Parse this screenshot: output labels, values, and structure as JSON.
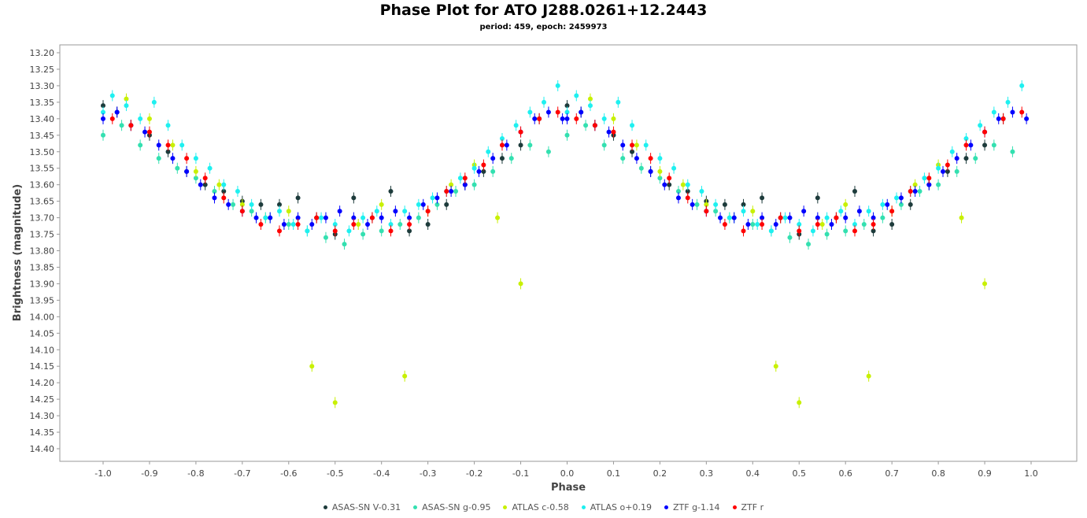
{
  "chart_data": {
    "type": "scatter",
    "title": "Phase Plot for ATO J288.0261+12.2443",
    "subtitle": "period: 459, epoch: 2459973",
    "xlabel": "Phase",
    "ylabel": "Brightness (magnitude)",
    "xlim": [
      -1.0,
      1.0
    ],
    "ylim": [
      13.2,
      14.4
    ],
    "y_inverted": true,
    "x_ticks": [
      "-1.0",
      "-0.9",
      "-0.8",
      "-0.7",
      "-0.6",
      "-0.5",
      "-0.4",
      "-0.3",
      "-0.2",
      "-0.1",
      "0.0",
      "0.1",
      "0.2",
      "0.3",
      "0.4",
      "0.5",
      "0.6",
      "0.7",
      "0.8",
      "0.9",
      "1.0"
    ],
    "y_ticks": [
      "13.20",
      "13.25",
      "13.30",
      "13.35",
      "13.40",
      "13.45",
      "13.50",
      "13.55",
      "13.60",
      "13.65",
      "13.70",
      "13.75",
      "13.80",
      "13.85",
      "13.90",
      "13.95",
      "14.00",
      "14.05",
      "14.10",
      "14.15",
      "14.20",
      "14.25",
      "14.30",
      "14.35",
      "14.40"
    ],
    "grid": false,
    "legend_position": "bottom",
    "series": [
      {
        "name": "ASAS-SN V-0.31",
        "color": "#1d3b3b",
        "x": [
          0.0,
          0.03,
          0.06,
          0.1,
          0.14,
          0.18,
          0.22,
          0.26,
          0.3,
          0.34,
          0.38,
          0.42,
          0.46,
          0.5,
          0.54,
          0.58,
          0.62,
          0.66,
          0.7,
          0.74,
          0.78,
          0.82,
          0.86,
          0.9,
          0.94
        ],
        "y": [
          13.36,
          13.38,
          13.42,
          13.45,
          13.5,
          13.56,
          13.6,
          13.62,
          13.65,
          13.66,
          13.66,
          13.64,
          13.7,
          13.75,
          13.64,
          13.7,
          13.62,
          13.74,
          13.72,
          13.66,
          13.6,
          13.56,
          13.52,
          13.48,
          13.4
        ]
      },
      {
        "name": "ASAS-SN g-0.95",
        "color": "#33e0b0",
        "x": [
          0.0,
          0.04,
          0.08,
          0.12,
          0.16,
          0.2,
          0.24,
          0.28,
          0.32,
          0.36,
          0.4,
          0.44,
          0.48,
          0.52,
          0.56,
          0.6,
          0.64,
          0.68,
          0.72,
          0.76,
          0.8,
          0.84,
          0.88,
          0.92,
          0.96
        ],
        "y": [
          13.45,
          13.42,
          13.48,
          13.52,
          13.55,
          13.58,
          13.62,
          13.66,
          13.68,
          13.7,
          13.72,
          13.74,
          13.76,
          13.78,
          13.75,
          13.74,
          13.72,
          13.7,
          13.66,
          13.62,
          13.6,
          13.56,
          13.52,
          13.48,
          13.5
        ]
      },
      {
        "name": "ATLAS c-0.58",
        "color": "#c8f000",
        "x": [
          0.05,
          0.1,
          0.15,
          0.2,
          0.25,
          0.3,
          0.35,
          0.4,
          0.45,
          0.5,
          0.55,
          0.6,
          0.65,
          0.7,
          0.75,
          0.8,
          0.85,
          0.9
        ],
        "y": [
          13.34,
          13.4,
          13.48,
          13.56,
          13.6,
          13.66,
          13.7,
          13.68,
          14.15,
          14.26,
          13.72,
          13.66,
          14.18,
          13.68,
          13.6,
          13.54,
          13.7,
          13.9
        ]
      },
      {
        "name": "ATLAS o+0.19",
        "color": "#1ef0f0",
        "x": [
          0.0,
          0.02,
          0.05,
          0.08,
          0.11,
          0.14,
          0.17,
          0.2,
          0.23,
          0.26,
          0.29,
          0.32,
          0.35,
          0.38,
          0.41,
          0.44,
          0.47,
          0.5,
          0.53,
          0.56,
          0.59,
          0.62,
          0.65,
          0.68,
          0.71,
          0.74,
          0.77,
          0.8,
          0.83,
          0.86,
          0.89,
          0.92,
          0.95,
          0.98
        ],
        "y": [
          13.38,
          13.33,
          13.36,
          13.4,
          13.35,
          13.42,
          13.48,
          13.52,
          13.55,
          13.6,
          13.62,
          13.66,
          13.7,
          13.68,
          13.72,
          13.74,
          13.7,
          13.72,
          13.74,
          13.7,
          13.68,
          13.72,
          13.68,
          13.66,
          13.64,
          13.62,
          13.58,
          13.55,
          13.5,
          13.46,
          13.42,
          13.38,
          13.35,
          13.3
        ]
      },
      {
        "name": "ZTF g-1.14",
        "color": "#0000ff",
        "x": [
          0.0,
          0.03,
          0.06,
          0.09,
          0.12,
          0.15,
          0.18,
          0.21,
          0.24,
          0.27,
          0.3,
          0.33,
          0.36,
          0.39,
          0.42,
          0.45,
          0.48,
          0.51,
          0.54,
          0.57,
          0.6,
          0.63,
          0.66,
          0.69,
          0.72,
          0.75,
          0.78,
          0.81,
          0.84,
          0.87,
          0.9,
          0.93,
          0.96,
          0.99
        ],
        "y": [
          13.4,
          13.38,
          13.42,
          13.44,
          13.48,
          13.52,
          13.56,
          13.6,
          13.64,
          13.66,
          13.68,
          13.7,
          13.7,
          13.72,
          13.7,
          13.72,
          13.7,
          13.68,
          13.7,
          13.72,
          13.7,
          13.68,
          13.7,
          13.66,
          13.64,
          13.62,
          13.6,
          13.56,
          13.52,
          13.48,
          13.44,
          13.4,
          13.38,
          13.4
        ]
      },
      {
        "name": "ZTF r",
        "color": "#ff0000",
        "x": [
          0.02,
          0.06,
          0.1,
          0.14,
          0.18,
          0.22,
          0.26,
          0.3,
          0.34,
          0.38,
          0.42,
          0.46,
          0.5,
          0.54,
          0.58,
          0.62,
          0.66,
          0.7,
          0.74,
          0.78,
          0.82,
          0.86,
          0.9,
          0.94,
          0.98
        ],
        "y": [
          13.4,
          13.42,
          13.44,
          13.48,
          13.52,
          13.58,
          13.64,
          13.68,
          13.72,
          13.74,
          13.72,
          13.7,
          13.74,
          13.72,
          13.7,
          13.74,
          13.72,
          13.68,
          13.62,
          13.58,
          13.54,
          13.48,
          13.44,
          13.4,
          13.38
        ]
      }
    ]
  }
}
